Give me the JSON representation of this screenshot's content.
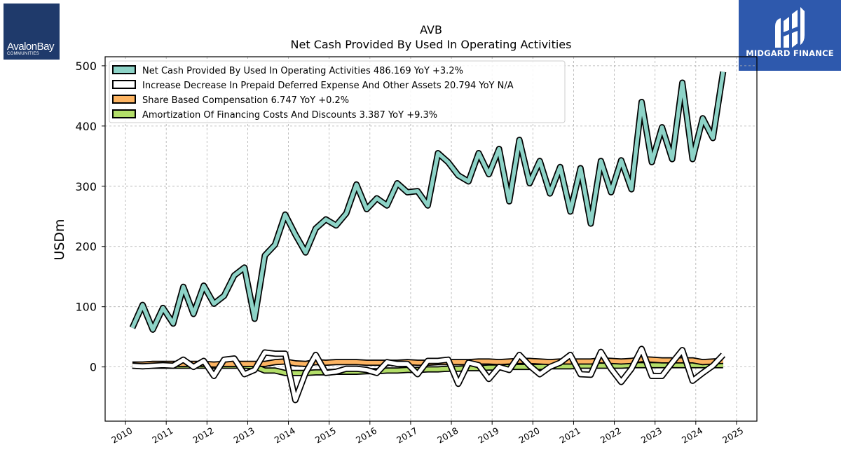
{
  "logos": {
    "left": {
      "name": "AvalonBay",
      "sub": "COMMUNITIES",
      "color": "#1f3a6b"
    },
    "right": {
      "name": "MIDGARD FINANCE",
      "color": "#2e59ad"
    }
  },
  "chart_data": {
    "type": "line",
    "title": "AVB",
    "subtitle": "Net Cash Provided By Used In Operating Activities",
    "ylabel": "USDm",
    "xlabel": "",
    "xlim": [
      2009.5,
      2025.5
    ],
    "ylim": [
      -90,
      515
    ],
    "x_ticks": [
      "2010",
      "2011",
      "2012",
      "2013",
      "2014",
      "2015",
      "2016",
      "2017",
      "2018",
      "2019",
      "2020",
      "2021",
      "2022",
      "2023",
      "2024",
      "2025"
    ],
    "y_ticks": [
      "0",
      "100",
      "200",
      "300",
      "400",
      "500"
    ],
    "grid": true,
    "legend_position": "top-left",
    "x": [
      2010.17,
      2010.42,
      2010.67,
      2010.92,
      2011.17,
      2011.42,
      2011.67,
      2011.92,
      2012.17,
      2012.42,
      2012.67,
      2012.92,
      2013.17,
      2013.42,
      2013.67,
      2013.92,
      2014.17,
      2014.42,
      2014.67,
      2014.92,
      2015.17,
      2015.42,
      2015.67,
      2015.92,
      2016.17,
      2016.42,
      2016.67,
      2016.92,
      2017.17,
      2017.42,
      2017.67,
      2017.92,
      2018.17,
      2018.42,
      2018.67,
      2018.92,
      2019.17,
      2019.42,
      2019.67,
      2019.92,
      2020.17,
      2020.42,
      2020.67,
      2020.92,
      2021.17,
      2021.42,
      2021.67,
      2021.92,
      2022.17,
      2022.42,
      2022.67,
      2022.92,
      2023.17,
      2023.42,
      2023.67,
      2023.92,
      2024.17,
      2024.42,
      2024.67,
      2024.92
    ],
    "series": [
      {
        "name": "Net Cash Provided By Used In Operating Activities",
        "legend": "Net Cash Provided By Used In Operating Activities  486.169 YoY +3.2%",
        "color": "#8dd3c7",
        "values": [
          65,
          103,
          62,
          98,
          72,
          133,
          88,
          135,
          105,
          118,
          152,
          165,
          80,
          185,
          203,
          253,
          220,
          190,
          230,
          245,
          235,
          255,
          303,
          262,
          280,
          268,
          305,
          290,
          292,
          268,
          355,
          340,
          318,
          308,
          355,
          320,
          362,
          275,
          377,
          305,
          342,
          288,
          332,
          258,
          330,
          238,
          342,
          290,
          343,
          295,
          440,
          340,
          398,
          345,
          472,
          345,
          413,
          380,
          490,
          null
        ],
        "stroke_width_data": 8.5
      },
      {
        "name": "Increase Decrease In Prepaid Deferred Expense And Other Assets",
        "legend": "Increase Decrease In Prepaid Deferred Expense And Other Assets  20.794 YoY N/A",
        "color": "#ffffff",
        "values": [
          2,
          1,
          2,
          3,
          2,
          12,
          0,
          10,
          -15,
          12,
          14,
          -12,
          -5,
          24,
          22,
          22,
          -55,
          -10,
          20,
          -10,
          -8,
          -3,
          -3,
          -5,
          -10,
          8,
          5,
          5,
          -12,
          10,
          10,
          12,
          -28,
          7,
          3,
          -20,
          0,
          -5,
          20,
          2,
          -12,
          0,
          7,
          20,
          -12,
          -13,
          25,
          -3,
          -25,
          -3,
          30,
          -15,
          -15,
          7,
          28,
          -23,
          -10,
          2,
          20,
          null
        ],
        "stroke_width_data": 8.5
      },
      {
        "name": "Share Based Compensation",
        "legend": "Share Based Compensation  6.747 YoY +0.2%",
        "color": "#fdb462",
        "values": [
          4,
          4,
          5,
          5,
          5,
          5,
          5,
          5,
          4,
          5,
          5,
          5,
          5,
          5,
          8,
          9,
          6,
          5,
          8,
          7,
          8,
          8,
          8,
          7,
          7,
          7,
          7,
          8,
          7,
          7,
          8,
          8,
          8,
          8,
          9,
          9,
          8,
          9,
          10,
          10,
          9,
          8,
          9,
          9,
          9,
          9,
          11,
          10,
          9,
          10,
          13,
          12,
          11,
          11,
          11,
          11,
          8,
          9,
          10,
          null
        ],
        "stroke_width_data": 8.5
      },
      {
        "name": "Amortization Of Financing Costs And Discounts",
        "legend": "Amortization Of Financing Costs And Discounts  3.387 YoY +9.3%",
        "color": "#b3de69",
        "values": [
          3,
          2,
          2,
          2,
          2,
          2,
          2,
          2,
          2,
          2,
          2,
          2,
          1,
          -6,
          -6,
          -10,
          -10,
          -10,
          -9,
          -9,
          -8,
          -8,
          -8,
          -7,
          -7,
          -6,
          -6,
          -5,
          -5,
          -4,
          -4,
          -3,
          -3,
          -2,
          -2,
          -1,
          -1,
          0,
          0,
          0,
          0,
          1,
          1,
          1,
          2,
          2,
          2,
          2,
          2,
          3,
          3,
          3,
          3,
          3,
          3,
          3,
          3,
          3,
          3,
          null
        ],
        "stroke_width_data": 8.5
      }
    ]
  }
}
